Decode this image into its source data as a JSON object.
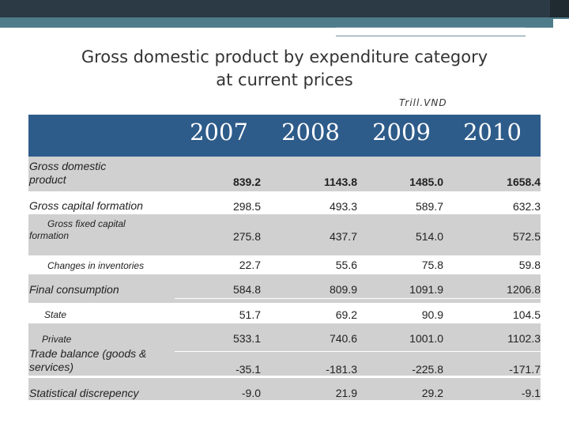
{
  "title_line1": "Gross domestic product by expenditure category",
  "title_line2": "at current prices",
  "unit": "Trill.VND",
  "years": [
    "2007",
    "2008",
    "2009",
    "2010"
  ],
  "rows": [
    {
      "label_line1": "Gross  domestic",
      "label_line2": "product",
      "values": [
        "839.2",
        "1143.8",
        "1485.0",
        "1658.4"
      ]
    },
    {
      "label": "Gross capital formation",
      "values": [
        "298.5",
        "493.3",
        "589.7",
        "632.3"
      ]
    },
    {
      "label_line1": "Gross fixed capital",
      "label_line2": "formation",
      "values": [
        "275.8",
        "437.7",
        "514.0",
        "572.5"
      ]
    },
    {
      "label": "Changes in inventories",
      "values": [
        "22.7",
        "55.6",
        "75.8",
        "59.8"
      ]
    },
    {
      "label": "Final consumption",
      "values": [
        "584.8",
        "809.9",
        "1091.9",
        "1206.8"
      ]
    },
    {
      "label": "State",
      "values": [
        "51.7",
        "69.2",
        "90.9",
        "104.5"
      ]
    },
    {
      "label": "Private",
      "values": [
        "533.1",
        "740.6",
        "1001.0",
        "1102.3"
      ]
    },
    {
      "label_line1": "Trade balance (goods &",
      "label_line2": "services)",
      "values": [
        "-35.1",
        "-181.3",
        "-225.8",
        "-171.7"
      ]
    },
    {
      "label": "Statistical discrepency",
      "values": [
        "-9.0",
        "21.9",
        "29.2",
        "-9.1"
      ]
    }
  ]
}
